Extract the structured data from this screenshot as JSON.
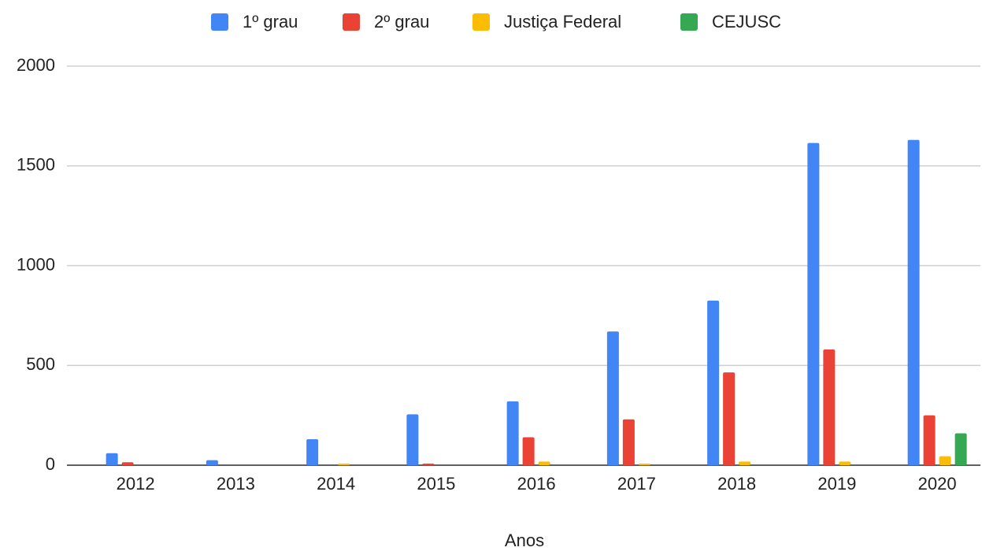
{
  "chart_data": {
    "type": "bar",
    "categories": [
      "2012",
      "2013",
      "2014",
      "2015",
      "2016",
      "2017",
      "2018",
      "2019",
      "2020"
    ],
    "series": [
      {
        "name": "1º grau",
        "color": "#4285f4",
        "values": [
          60,
          25,
          130,
          255,
          320,
          670,
          825,
          1615,
          1630
        ]
      },
      {
        "name": "2º grau",
        "color": "#ea4335",
        "values": [
          15,
          0,
          0,
          8,
          140,
          230,
          465,
          580,
          250
        ]
      },
      {
        "name": "Justiça Federal",
        "color": "#fbbc04",
        "values": [
          0,
          0,
          8,
          0,
          18,
          8,
          18,
          18,
          45
        ]
      },
      {
        "name": "CEJUSC",
        "color": "#34a853",
        "values": [
          0,
          0,
          0,
          0,
          0,
          0,
          0,
          0,
          160
        ]
      }
    ],
    "x_label": "Anos",
    "ylim": [
      0,
      2000
    ],
    "yticks": [
      0,
      500,
      1000,
      1500,
      2000
    ],
    "grid": true,
    "legend": "top"
  }
}
